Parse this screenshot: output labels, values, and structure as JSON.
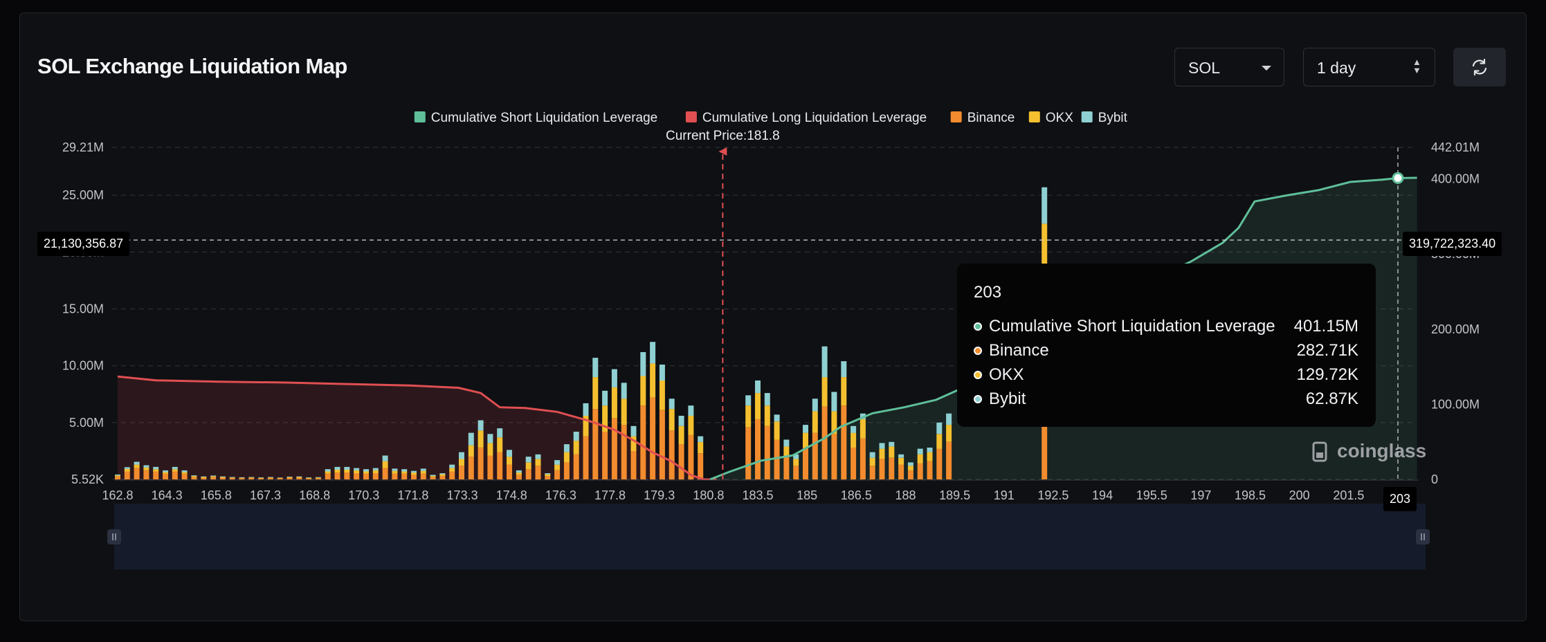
{
  "header": {
    "title": "SOL Exchange Liquidation Map",
    "coin_select": "SOL",
    "period_select": "1 day"
  },
  "chart_data": {
    "type": "bar",
    "title": "SOL Exchange Liquidation Map",
    "current_price_label": "Current Price:181.8",
    "current_price": 181.8,
    "legend": [
      "Cumulative Short Liquidation Leverage",
      "Cumulative Long Liquidation Leverage",
      "Binance",
      "OKX",
      "Bybit"
    ],
    "colors": {
      "short_cum": "#5fbf9a",
      "long_cum": "#e04f52",
      "binance": "#f28c2e",
      "okx": "#f4c02f",
      "bybit": "#8fd0d2"
    },
    "x_axis": {
      "min": 162.8,
      "max": 203,
      "tick_labels": [
        "162.8",
        "164.3",
        "165.8",
        "167.3",
        "168.8",
        "170.3",
        "171.8",
        "173.3",
        "174.8",
        "176.3",
        "177.8",
        "179.3",
        "180.8",
        "183.5",
        "185",
        "186.5",
        "188",
        "189.5",
        "191",
        "192.5",
        "194",
        "195.5",
        "197",
        "198.5",
        "200",
        "201.5",
        "203"
      ]
    },
    "y_left": {
      "tick_labels": [
        "5.52K",
        "5.00M",
        "10.00M",
        "15.00M",
        "20.00M",
        "25.00M",
        "29.21M"
      ],
      "range": [
        0,
        29.21
      ],
      "unit": "M"
    },
    "y_right": {
      "tick_labels": [
        "0",
        "100.00M",
        "200.00M",
        "300.00M",
        "400.00M",
        "442.01M"
      ],
      "range": [
        0,
        442.01
      ],
      "unit": "M"
    },
    "bars_stacked": [
      {
        "x": 162.8,
        "binance": 0.25,
        "okx": 0.1,
        "bybit": 0.08
      },
      {
        "x": 163.1,
        "binance": 0.7,
        "okx": 0.22,
        "bybit": 0.16
      },
      {
        "x": 163.4,
        "binance": 1.0,
        "okx": 0.3,
        "bybit": 0.25
      },
      {
        "x": 163.7,
        "binance": 0.8,
        "okx": 0.25,
        "bybit": 0.2
      },
      {
        "x": 164.0,
        "binance": 0.7,
        "okx": 0.2,
        "bybit": 0.2
      },
      {
        "x": 164.3,
        "binance": 0.5,
        "okx": 0.15,
        "bybit": 0.15
      },
      {
        "x": 164.6,
        "binance": 0.7,
        "okx": 0.2,
        "bybit": 0.2
      },
      {
        "x": 164.9,
        "binance": 0.5,
        "okx": 0.15,
        "bybit": 0.15
      },
      {
        "x": 165.2,
        "binance": 0.2,
        "okx": 0.1,
        "bybit": 0.06
      },
      {
        "x": 165.5,
        "binance": 0.15,
        "okx": 0.06,
        "bybit": 0.05
      },
      {
        "x": 165.8,
        "binance": 0.2,
        "okx": 0.08,
        "bybit": 0.06
      },
      {
        "x": 166.1,
        "binance": 0.15,
        "okx": 0.06,
        "bybit": 0.05
      },
      {
        "x": 166.4,
        "binance": 0.12,
        "okx": 0.05,
        "bybit": 0.04
      },
      {
        "x": 166.7,
        "binance": 0.1,
        "okx": 0.05,
        "bybit": 0.04
      },
      {
        "x": 167.0,
        "binance": 0.12,
        "okx": 0.05,
        "bybit": 0.04
      },
      {
        "x": 167.3,
        "binance": 0.1,
        "okx": 0.04,
        "bybit": 0.04
      },
      {
        "x": 167.6,
        "binance": 0.12,
        "okx": 0.05,
        "bybit": 0.04
      },
      {
        "x": 167.9,
        "binance": 0.1,
        "okx": 0.04,
        "bybit": 0.03
      },
      {
        "x": 168.2,
        "binance": 0.15,
        "okx": 0.05,
        "bybit": 0.05
      },
      {
        "x": 168.5,
        "binance": 0.15,
        "okx": 0.06,
        "bybit": 0.05
      },
      {
        "x": 168.8,
        "binance": 0.1,
        "okx": 0.04,
        "bybit": 0.04
      },
      {
        "x": 169.1,
        "binance": 0.12,
        "okx": 0.04,
        "bybit": 0.04
      },
      {
        "x": 169.4,
        "binance": 0.5,
        "okx": 0.2,
        "bybit": 0.2
      },
      {
        "x": 169.7,
        "binance": 0.6,
        "okx": 0.25,
        "bybit": 0.25
      },
      {
        "x": 170.0,
        "binance": 0.6,
        "okx": 0.25,
        "bybit": 0.25
      },
      {
        "x": 170.3,
        "binance": 0.55,
        "okx": 0.25,
        "bybit": 0.2
      },
      {
        "x": 170.6,
        "binance": 0.5,
        "okx": 0.2,
        "bybit": 0.2
      },
      {
        "x": 170.9,
        "binance": 0.55,
        "okx": 0.25,
        "bybit": 0.2
      },
      {
        "x": 171.2,
        "binance": 1.0,
        "okx": 0.6,
        "bybit": 0.5
      },
      {
        "x": 171.5,
        "binance": 0.5,
        "okx": 0.25,
        "bybit": 0.2
      },
      {
        "x": 171.8,
        "binance": 0.5,
        "okx": 0.2,
        "bybit": 0.2
      },
      {
        "x": 172.1,
        "binance": 0.4,
        "okx": 0.2,
        "bybit": 0.15
      },
      {
        "x": 172.4,
        "binance": 0.5,
        "okx": 0.25,
        "bybit": 0.2
      },
      {
        "x": 172.7,
        "binance": 0.2,
        "okx": 0.1,
        "bybit": 0.1
      },
      {
        "x": 173.0,
        "binance": 0.3,
        "okx": 0.15,
        "bybit": 0.1
      },
      {
        "x": 173.3,
        "binance": 0.7,
        "okx": 0.3,
        "bybit": 0.3
      },
      {
        "x": 173.6,
        "binance": 1.2,
        "okx": 0.6,
        "bybit": 0.6
      },
      {
        "x": 173.9,
        "binance": 2.0,
        "okx": 1.0,
        "bybit": 1.1
      },
      {
        "x": 174.2,
        "binance": 2.8,
        "okx": 1.5,
        "bybit": 0.9
      },
      {
        "x": 174.5,
        "binance": 2.1,
        "okx": 1.1,
        "bybit": 0.8
      },
      {
        "x": 174.8,
        "binance": 2.4,
        "okx": 1.3,
        "bybit": 0.8
      },
      {
        "x": 175.1,
        "binance": 1.3,
        "okx": 0.7,
        "bybit": 0.6
      },
      {
        "x": 175.4,
        "binance": 0.4,
        "okx": 0.2,
        "bybit": 0.2
      },
      {
        "x": 175.7,
        "binance": 0.9,
        "okx": 0.6,
        "bybit": 0.5
      },
      {
        "x": 176.0,
        "binance": 1.2,
        "okx": 0.6,
        "bybit": 0.4
      },
      {
        "x": 176.3,
        "binance": 0.3,
        "okx": 0.15,
        "bybit": 0.1
      },
      {
        "x": 176.6,
        "binance": 0.8,
        "okx": 0.5,
        "bybit": 0.4
      },
      {
        "x": 176.9,
        "binance": 1.5,
        "okx": 0.9,
        "bybit": 0.7
      },
      {
        "x": 177.2,
        "binance": 2.2,
        "okx": 1.2,
        "bybit": 0.8
      },
      {
        "x": 177.5,
        "binance": 3.8,
        "okx": 1.8,
        "bybit": 1.1
      },
      {
        "x": 177.8,
        "binance": 6.2,
        "okx": 2.8,
        "bybit": 1.7
      },
      {
        "x": 178.1,
        "binance": 4.2,
        "okx": 2.3,
        "bybit": 1.3
      },
      {
        "x": 178.4,
        "binance": 5.4,
        "okx": 2.7,
        "bybit": 1.6
      },
      {
        "x": 178.7,
        "binance": 4.8,
        "okx": 2.3,
        "bybit": 1.4
      },
      {
        "x": 179.0,
        "binance": 2.5,
        "okx": 1.3,
        "bybit": 0.9
      },
      {
        "x": 179.3,
        "binance": 6.5,
        "okx": 2.6,
        "bybit": 2.1
      },
      {
        "x": 179.6,
        "binance": 7.2,
        "okx": 3.0,
        "bybit": 1.9
      },
      {
        "x": 179.9,
        "binance": 6.1,
        "okx": 2.6,
        "bybit": 1.4
      },
      {
        "x": 180.2,
        "binance": 4.3,
        "okx": 1.9,
        "bybit": 0.9
      },
      {
        "x": 180.5,
        "binance": 3.1,
        "okx": 1.6,
        "bybit": 0.9
      },
      {
        "x": 180.8,
        "binance": 3.9,
        "okx": 1.7,
        "bybit": 0.9
      },
      {
        "x": 181.1,
        "binance": 2.3,
        "okx": 1.0,
        "bybit": 0.5
      },
      {
        "x": 182.6,
        "binance": 4.6,
        "okx": 1.9,
        "bybit": 0.9
      },
      {
        "x": 182.9,
        "binance": 5.3,
        "okx": 2.3,
        "bybit": 1.1
      },
      {
        "x": 183.2,
        "binance": 4.7,
        "okx": 1.8,
        "bybit": 1.1
      },
      {
        "x": 183.5,
        "binance": 3.5,
        "okx": 1.6,
        "bybit": 0.6
      },
      {
        "x": 183.8,
        "binance": 2.0,
        "okx": 0.9,
        "bybit": 0.6
      },
      {
        "x": 184.1,
        "binance": 1.2,
        "okx": 0.6,
        "bybit": 0.4
      },
      {
        "x": 184.4,
        "binance": 2.8,
        "okx": 1.3,
        "bybit": 0.7
      },
      {
        "x": 184.7,
        "binance": 4.1,
        "okx": 1.9,
        "bybit": 1.1
      },
      {
        "x": 185.0,
        "binance": 6.4,
        "okx": 2.6,
        "bybit": 2.7
      },
      {
        "x": 185.3,
        "binance": 4.0,
        "okx": 2.0,
        "bybit": 1.7
      },
      {
        "x": 185.6,
        "binance": 6.5,
        "okx": 2.5,
        "bybit": 1.4
      },
      {
        "x": 185.9,
        "binance": 2.8,
        "okx": 1.3,
        "bybit": 0.6
      },
      {
        "x": 186.2,
        "binance": 3.6,
        "okx": 1.7,
        "bybit": 0.5
      },
      {
        "x": 186.5,
        "binance": 1.2,
        "okx": 0.7,
        "bybit": 0.5
      },
      {
        "x": 186.8,
        "binance": 1.8,
        "okx": 0.9,
        "bybit": 0.5
      },
      {
        "x": 187.1,
        "binance": 1.9,
        "okx": 1.0,
        "bybit": 0.4
      },
      {
        "x": 187.4,
        "binance": 1.3,
        "okx": 0.6,
        "bybit": 0.3
      },
      {
        "x": 187.7,
        "binance": 0.8,
        "okx": 0.4,
        "bybit": 0.3
      },
      {
        "x": 188.0,
        "binance": 1.4,
        "okx": 0.8,
        "bybit": 0.5
      },
      {
        "x": 188.3,
        "binance": 1.6,
        "okx": 0.8,
        "bybit": 0.4
      },
      {
        "x": 188.6,
        "binance": 2.7,
        "okx": 1.3,
        "bybit": 1.0
      },
      {
        "x": 188.9,
        "binance": 3.3,
        "okx": 1.5,
        "bybit": 1.0
      },
      {
        "x": 191.9,
        "binance": 17.5,
        "okx": 5.0,
        "bybit": 3.2
      }
    ],
    "short_cumulative": [
      {
        "x": 181.4,
        "y": 0
      },
      {
        "x": 182.0,
        "y": 10
      },
      {
        "x": 183.0,
        "y": 25
      },
      {
        "x": 184.0,
        "y": 32
      },
      {
        "x": 185.0,
        "y": 55
      },
      {
        "x": 185.5,
        "y": 70
      },
      {
        "x": 186.5,
        "y": 88
      },
      {
        "x": 187.5,
        "y": 96
      },
      {
        "x": 188.5,
        "y": 106
      },
      {
        "x": 189.5,
        "y": 125
      },
      {
        "x": 190.5,
        "y": 140
      },
      {
        "x": 191.5,
        "y": 148
      },
      {
        "x": 192.5,
        "y": 170
      },
      {
        "x": 193.5,
        "y": 210
      },
      {
        "x": 194.5,
        "y": 235
      },
      {
        "x": 195.5,
        "y": 270
      },
      {
        "x": 196.5,
        "y": 290
      },
      {
        "x": 197.5,
        "y": 315
      },
      {
        "x": 198.0,
        "y": 335
      },
      {
        "x": 198.5,
        "y": 370
      },
      {
        "x": 199.5,
        "y": 378
      },
      {
        "x": 200.5,
        "y": 385
      },
      {
        "x": 201.5,
        "y": 396
      },
      {
        "x": 202.5,
        "y": 399
      },
      {
        "x": 203,
        "y": 401.15
      },
      {
        "x": 203.6,
        "y": 401.5
      }
    ],
    "long_cumulative": [
      {
        "x": 162.8,
        "y": 137
      },
      {
        "x": 164,
        "y": 132
      },
      {
        "x": 166,
        "y": 130
      },
      {
        "x": 168,
        "y": 129
      },
      {
        "x": 170,
        "y": 127
      },
      {
        "x": 172,
        "y": 125
      },
      {
        "x": 173.5,
        "y": 122
      },
      {
        "x": 174.2,
        "y": 115
      },
      {
        "x": 174.8,
        "y": 96
      },
      {
        "x": 175.6,
        "y": 95
      },
      {
        "x": 176.6,
        "y": 90
      },
      {
        "x": 177.6,
        "y": 78
      },
      {
        "x": 178.4,
        "y": 66
      },
      {
        "x": 179.0,
        "y": 52
      },
      {
        "x": 179.6,
        "y": 36
      },
      {
        "x": 180.2,
        "y": 24
      },
      {
        "x": 180.8,
        "y": 6
      },
      {
        "x": 181.2,
        "y": 0
      },
      {
        "x": 181.6,
        "y": 0
      }
    ],
    "crosshair": {
      "x": 203,
      "x_label": "203",
      "y_left_label": "21,130,356.87",
      "y_right_label": "319,722,323.40"
    },
    "tooltip": {
      "title": "203",
      "rows": [
        {
          "name": "Cumulative Short Liquidation Leverage",
          "value": "401.15M",
          "color": "#5fbf9a"
        },
        {
          "name": "Binance",
          "value": "282.71K",
          "color": "#f28c2e"
        },
        {
          "name": "OKX",
          "value": "129.72K",
          "color": "#f4c02f"
        },
        {
          "name": "Bybit",
          "value": "62.87K",
          "color": "#8fd0d2"
        }
      ]
    },
    "grid": true,
    "legend_position": "top-center"
  },
  "watermark": "coinglass"
}
